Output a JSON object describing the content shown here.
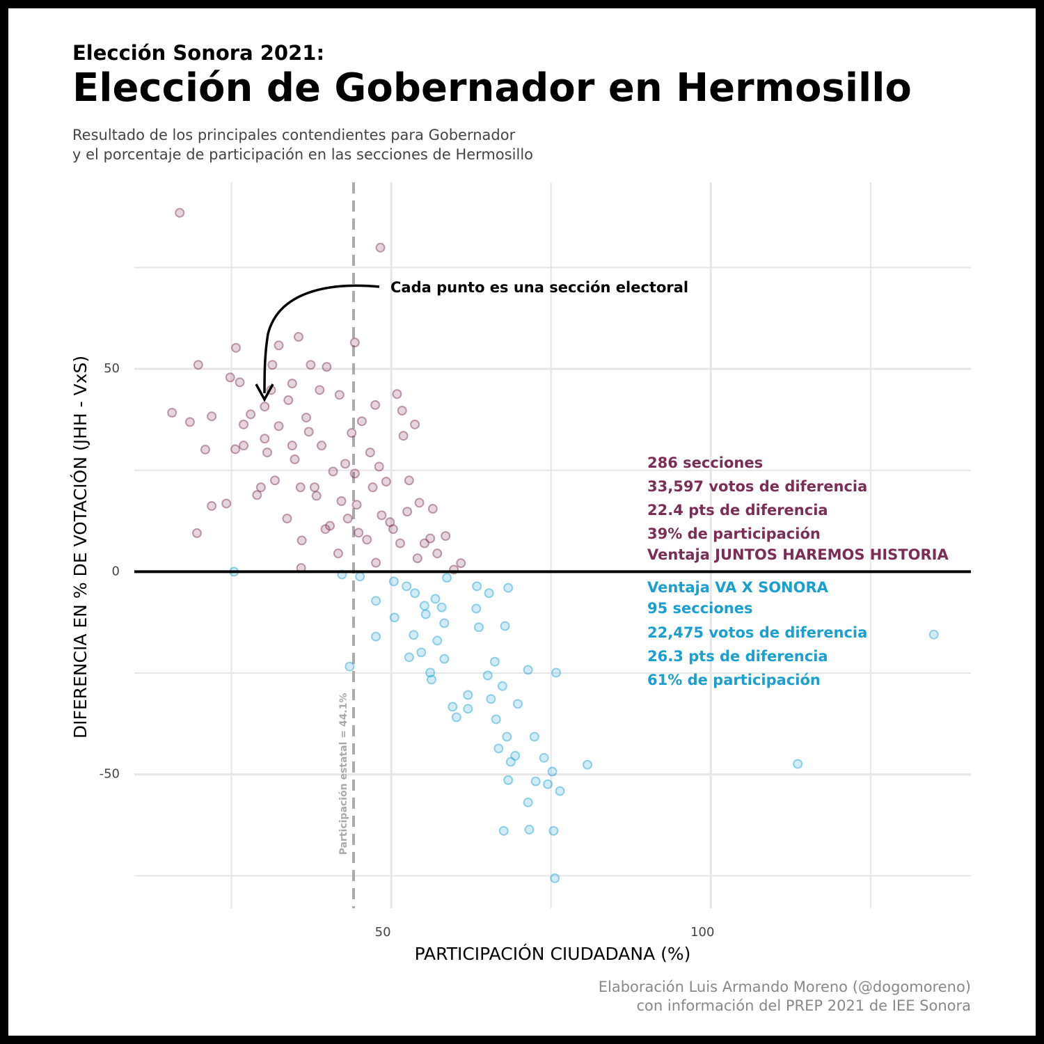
{
  "chart_data": {
    "type": "scatter",
    "supertitle": "Elección Sonora 2021:",
    "title": "Elección de Gobernador en Hermosillo",
    "subtitle": [
      "Resultado de los principales contendientes para Gobernador",
      "y el porcentaje de participación en las secciones de Hermosillo"
    ],
    "x_label": "PARTICIPACIÓN CIUDADANA (%)",
    "y_label": "DIFERENCIA EN % DE VOTACIÓN (JHH - VxS)",
    "caption": [
      "Elaboración Luis Armando Moreno (@dogomoreno)",
      "con información del PREP 2021 de IEE Sonora"
    ],
    "xlim": [
      9.8,
      140.7
    ],
    "ylim": [
      -83,
      96
    ],
    "xticks": [
      50,
      100
    ],
    "yticks": [
      50,
      0,
      -50
    ],
    "xminor": [
      25,
      75,
      125
    ],
    "yminor": [
      75,
      25,
      -25,
      -75
    ],
    "grid": true,
    "hline": 0,
    "vline": {
      "value": 44.1,
      "label": "Participación estatal = 44.1%",
      "color": "#aaaaaa"
    },
    "arrow_note": "Cada punto es una sección electoral",
    "series": [
      {
        "color": "#7b2d55",
        "x": [
          16.9,
          48.3,
          15.7,
          18.5,
          19.8,
          19.6,
          20.9,
          21.9,
          21.9,
          24.2,
          24.8,
          25.7,
          26.3,
          25.6,
          26.9,
          29.0,
          30.2,
          30.6,
          31.4,
          32.4,
          33.7,
          34.5,
          35.5,
          35.9,
          36.0,
          36.7,
          37.4,
          38.0,
          39.9,
          39.1,
          40.4,
          41.9,
          41.7,
          42.8,
          44.3,
          43.2,
          44.6,
          46.2,
          47.5,
          47.6,
          48.5,
          50.9,
          51.7,
          51.9,
          53.7,
          52.8,
          54.4,
          56.5,
          56.1,
          58.5,
          60.9,
          59.8,
          54.1,
          50.3,
          49.2,
          46.7,
          45.4,
          43.8,
          40.9,
          38.3,
          34.5,
          32.4,
          29.6,
          31.8,
          28.0,
          33.9,
          30.2,
          35.8,
          39.7,
          42.2,
          44.9,
          49.8,
          51.4,
          52.5,
          55.2,
          57.2,
          48.1,
          47.1,
          44.3,
          38.8,
          37.1,
          34.9,
          31.2,
          26.9
        ],
        "values": [
          88.5,
          79.9,
          39.2,
          36.9,
          51.0,
          9.5,
          30.1,
          38.3,
          16.2,
          16.8,
          47.9,
          55.2,
          46.7,
          30.2,
          36.3,
          18.9,
          40.7,
          29.4,
          51.0,
          55.8,
          13.1,
          46.4,
          57.9,
          0.9,
          7.7,
          38.0,
          51.0,
          20.8,
          50.5,
          31.1,
          11.3,
          43.6,
          4.5,
          26.6,
          56.5,
          13.1,
          16.5,
          7.9,
          41.1,
          2.2,
          13.9,
          43.8,
          39.7,
          33.5,
          36.3,
          22.5,
          17.0,
          15.5,
          8.2,
          8.8,
          2.1,
          0.5,
          3.3,
          10.5,
          22.2,
          29.4,
          37.1,
          34.2,
          24.7,
          18.7,
          31.1,
          35.9,
          20.8,
          22.5,
          38.8,
          42.3,
          32.8,
          20.8,
          10.5,
          17.4,
          9.6,
          12.2,
          7.0,
          14.8,
          7.0,
          4.5,
          25.9,
          20.8,
          24.2,
          44.8,
          34.5,
          27.7,
          44.8,
          31.1
        ]
      },
      {
        "color": "#1a9fd0",
        "x": [
          25.4,
          42.3,
          45.1,
          43.5,
          47.6,
          47.6,
          50.4,
          50.5,
          52.4,
          52.8,
          53.5,
          54.7,
          56.1,
          56.3,
          57.2,
          58.3,
          58.7,
          58.3,
          59.6,
          60.2,
          62.0,
          62.0,
          63.3,
          63.7,
          63.4,
          65.3,
          65.1,
          65.6,
          66.2,
          66.4,
          66.8,
          67.4,
          67.8,
          68.1,
          68.3,
          68.3,
          68.7,
          69.4,
          69.8,
          67.6,
          71.4,
          71.4,
          71.6,
          72.4,
          72.6,
          73.9,
          74.5,
          75.2,
          75.4,
          75.8,
          75.6,
          76.4,
          80.7,
          113.6,
          134.9,
          55.2,
          56.9,
          55.4,
          53.7,
          57.9
        ],
        "values": [
          0,
          -0.7,
          -1.2,
          -23.4,
          -7.2,
          -16.0,
          -2.4,
          -11.3,
          -3.6,
          -21.1,
          -15.6,
          -19.9,
          -24.9,
          -26.6,
          -17.0,
          -12.7,
          -1.5,
          -21.5,
          -33.3,
          -35.9,
          -30.4,
          -33.8,
          -9.1,
          -13.7,
          -3.6,
          -5.3,
          -25.6,
          -31.4,
          -22.2,
          -36.4,
          -43.6,
          -28.2,
          -13.4,
          -40.7,
          -4.0,
          -51.4,
          -46.9,
          -45.4,
          -32.6,
          -63.9,
          -24.2,
          -56.9,
          -63.6,
          -40.7,
          -51.7,
          -45.9,
          -52.4,
          -49.3,
          -63.9,
          -24.9,
          -75.6,
          -54.1,
          -47.6,
          -47.4,
          -15.5,
          -8.4,
          -6.7,
          -10.5,
          -5.3,
          -8.8
        ]
      }
    ],
    "annotations": [
      {
        "text": "286 secciones",
        "color": "#7b2d55"
      },
      {
        "text": "33,597 votos de diferencia",
        "color": "#7b2d55"
      },
      {
        "text": "22.4 pts de diferencia",
        "color": "#7b2d55"
      },
      {
        "text": "39% de participación",
        "color": "#7b2d55"
      },
      {
        "text": "Ventaja JUNTOS HAREMOS HISTORIA",
        "color": "#7b2d55"
      },
      {
        "text": "Ventaja VA X SONORA",
        "color": "#1a9fd0"
      },
      {
        "text": "95 secciones",
        "color": "#1a9fd0"
      },
      {
        "text": "22,475 votos de diferencia",
        "color": "#1a9fd0"
      },
      {
        "text": "26.3 pts de diferencia",
        "color": "#1a9fd0"
      },
      {
        "text": "61% de participación",
        "color": "#1a9fd0"
      }
    ]
  }
}
